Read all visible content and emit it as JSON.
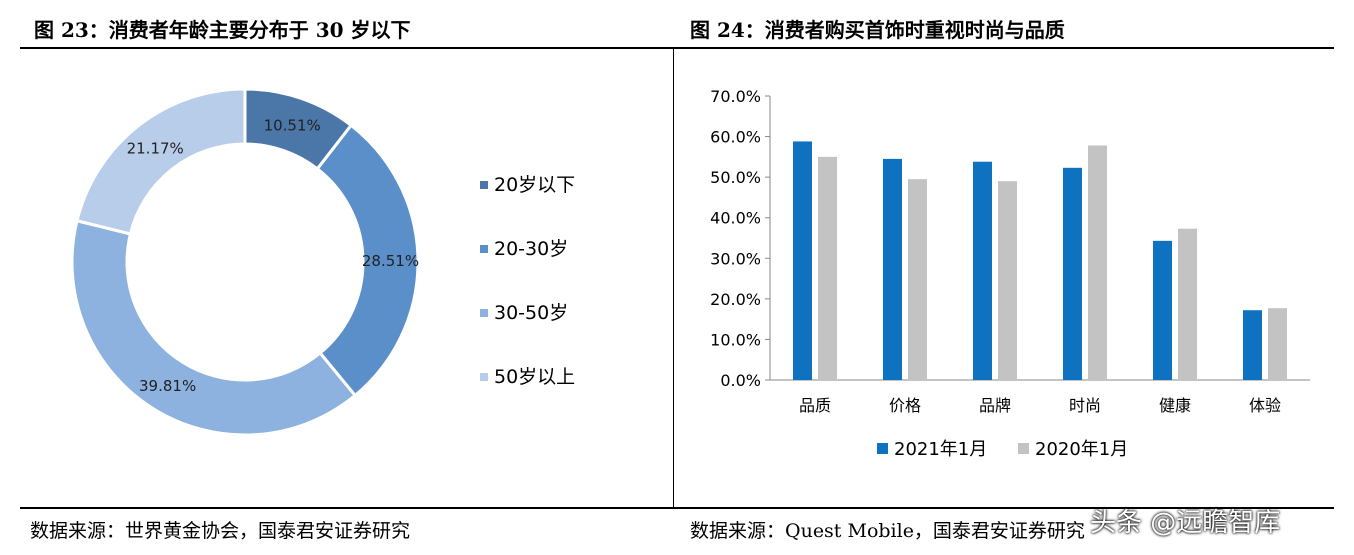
{
  "titles": {
    "left": "图 23：消费者年龄主要分布于 30 岁以下",
    "right": "图 24：消费者购买首饰时重视时尚与品质"
  },
  "sources": {
    "left": "数据来源：世界黄金协会，国泰君安证券研究",
    "right": "数据来源：Quest Mobile，国泰君安证券研究"
  },
  "watermark": "头条 @远瞻智库",
  "chart_data": [
    {
      "type": "pie",
      "variant": "donut",
      "labels": [
        "20岁以下",
        "20-30岁",
        "30-50岁",
        "50岁以上"
      ],
      "values": [
        10.51,
        28.51,
        39.81,
        21.17
      ],
      "data_labels": [
        "10.51%",
        "28.51%",
        "39.81%",
        "21.17%"
      ],
      "colors": [
        "#4a76a8",
        "#5b8fc9",
        "#8db2e0",
        "#b8cde9"
      ],
      "legend_position": "right"
    },
    {
      "type": "bar",
      "categories": [
        "品质",
        "价格",
        "品牌",
        "时尚",
        "健康",
        "体验"
      ],
      "series": [
        {
          "name": "2021年1月",
          "values": [
            58.8,
            54.5,
            53.8,
            52.3,
            34.3,
            17.2
          ],
          "color": "#0f72c0"
        },
        {
          "name": "2020年1月",
          "values": [
            55.0,
            49.5,
            49.0,
            57.8,
            37.3,
            17.7
          ],
          "color": "#c3c3c3"
        }
      ],
      "ylim": [
        0,
        70
      ],
      "yticks": [
        "0.0%",
        "10.0%",
        "20.0%",
        "30.0%",
        "40.0%",
        "50.0%",
        "60.0%",
        "70.0%"
      ],
      "legend_position": "bottom",
      "grid": false
    }
  ]
}
